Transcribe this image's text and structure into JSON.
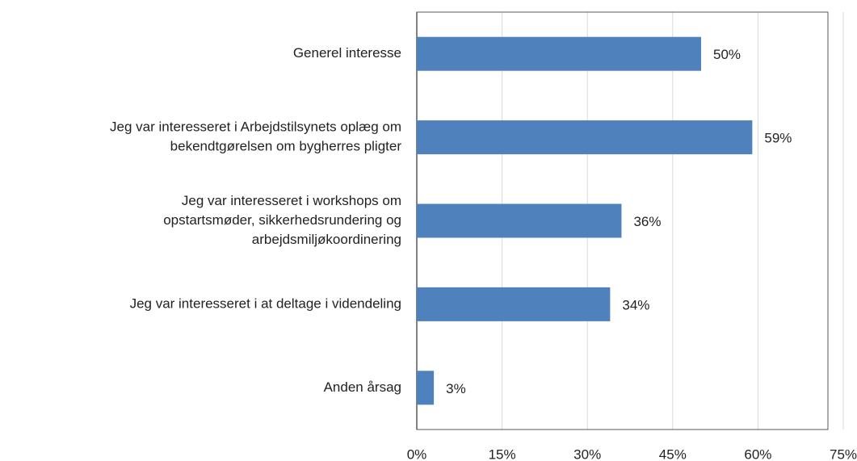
{
  "chart_data": {
    "type": "bar",
    "orientation": "horizontal",
    "categories": [
      [
        "Generel interesse"
      ],
      [
        "Jeg var interesseret i Arbejdstilsynets oplæg om",
        "bekendtgørelsen om bygherres pligter"
      ],
      [
        "Jeg var interesseret i workshops om",
        "opstartsmøder, sikkerhedsrundering og",
        "arbejdsmiljøkoordinering"
      ],
      [
        "Jeg var interesseret i at deltage i videndeling"
      ],
      [
        "Anden årsag"
      ]
    ],
    "values": [
      50,
      59,
      36,
      34,
      3
    ],
    "value_labels": [
      "50%",
      "59%",
      "36%",
      "34%",
      "3%"
    ],
    "color": "#4f81bd",
    "xlim": [
      0,
      75
    ],
    "xticks": [
      {
        "value": 0,
        "label": "0%"
      },
      {
        "value": 15,
        "label": "15%"
      },
      {
        "value": 30,
        "label": "30%"
      },
      {
        "value": 45,
        "label": "45%"
      },
      {
        "value": 60,
        "label": "60%"
      },
      {
        "value": 75,
        "label": "75%"
      }
    ],
    "grid": true
  }
}
